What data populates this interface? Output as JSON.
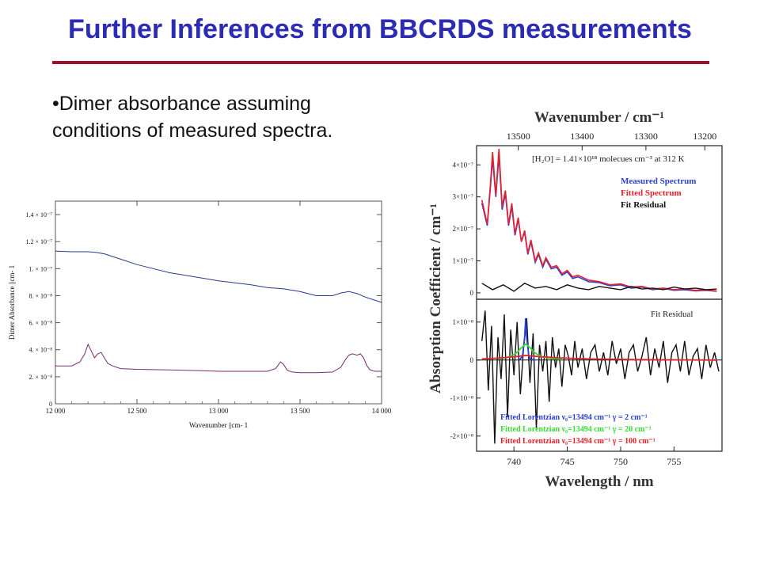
{
  "slide": {
    "title": "Further Inferences from BBCRDS measurements",
    "bullet": "•Dimer absorbance assuming conditions of measured spectra."
  },
  "chart_data": [
    {
      "type": "line",
      "xlabel": "Wavenumber ||cm- 1",
      "ylabel": "Dimer Absorbance ||cm- 1",
      "xlim": [
        12000,
        14000
      ],
      "ylim": [
        0,
        1.5e-07
      ],
      "x_ticks": [
        12000,
        12500,
        13000,
        13500,
        14000
      ],
      "x_tick_labels": [
        "12 000",
        "12 500",
        "13 000",
        "13 500",
        "14 000"
      ],
      "y_ticks": [
        0,
        2e-08,
        4e-08,
        6e-08,
        8e-08,
        1e-07,
        1.2e-07,
        1.4e-07
      ],
      "y_tick_labels": [
        "0",
        "2. × 10⁻⁸",
        "4. × 10⁻⁸",
        "6. × 10⁻⁸",
        "8. × 10⁻⁸",
        "1. × 10⁻⁷",
        "1.2 × 10⁻⁷",
        "1.4 × 10⁻⁷"
      ],
      "series": [
        {
          "color": "#2b3b8f",
          "x": [
            12000,
            12100,
            12200,
            12250,
            12300,
            12350,
            12400,
            12500,
            12600,
            12700,
            12800,
            12900,
            13000,
            13100,
            13200,
            13300,
            13400,
            13500,
            13600,
            13700,
            13750,
            13800,
            13850,
            13900,
            13950,
            14000
          ],
          "y": [
            1.13e-07,
            1.125e-07,
            1.125e-07,
            1.12e-07,
            1.11e-07,
            1.09e-07,
            1.07e-07,
            1.03e-07,
            1e-07,
            9.7e-08,
            9.5e-08,
            9.3e-08,
            9.1e-08,
            8.95e-08,
            8.8e-08,
            8.6e-08,
            8.5e-08,
            8.3e-08,
            8e-08,
            8e-08,
            8.2e-08,
            8.3e-08,
            8.15e-08,
            7.9e-08,
            7.7e-08,
            7.5e-08
          ]
        },
        {
          "color": "#7a2b6f",
          "x": [
            12000,
            12100,
            12150,
            12180,
            12200,
            12220,
            12240,
            12260,
            12280,
            12300,
            12320,
            12350,
            12400,
            12500,
            12700,
            12900,
            13000,
            13200,
            13300,
            13350,
            13380,
            13400,
            13420,
            13450,
            13500,
            13600,
            13700,
            13750,
            13780,
            13800,
            13820,
            13850,
            13870,
            13890,
            13910,
            13930,
            13960,
            14000
          ],
          "y": [
            2.8e-08,
            2.8e-08,
            3.1e-08,
            3.7e-08,
            4.4e-08,
            3.9e-08,
            3.4e-08,
            3.7e-08,
            3.8e-08,
            3.4e-08,
            3e-08,
            2.8e-08,
            2.6e-08,
            2.55e-08,
            2.5e-08,
            2.45e-08,
            2.4e-08,
            2.4e-08,
            2.4e-08,
            2.6e-08,
            3.1e-08,
            2.9e-08,
            2.5e-08,
            2.35e-08,
            2.3e-08,
            2.3e-08,
            2.35e-08,
            2.7e-08,
            3.3e-08,
            3.6e-08,
            3.7e-08,
            3.6e-08,
            3.7e-08,
            3.4e-08,
            2.8e-08,
            2.5e-08,
            2.4e-08,
            2.4e-08
          ]
        }
      ]
    },
    {
      "type": "line",
      "xlabel": "Wavelength / nm",
      "ylabel": "Absorption Coefficient / cm⁻¹",
      "top_axis_label": "Wavenumber / cm⁻¹",
      "top_ticks": [
        "13500",
        "13400",
        "13300",
        "13200"
      ],
      "x_ticks": [
        "740",
        "745",
        "750",
        "755"
      ],
      "xlim": [
        736.5,
        759.5
      ],
      "upper_panel": {
        "annotation": "[H₂O] = 1.41×10¹⁸ molecues cm⁻³ at 312 K",
        "ylim": [
          -2e-08,
          4.6e-07
        ],
        "y_ticks": [
          0,
          1e-07,
          2e-07,
          3e-07,
          4e-07
        ],
        "y_tick_labels": [
          "0",
          "1×10⁻⁷",
          "2×10⁻⁷",
          "3×10⁻⁷",
          "4×10⁻⁷"
        ],
        "legend": [
          {
            "label": "Measured Spectrum",
            "color": "#2a3fd6"
          },
          {
            "label": "Fitted Spectrum",
            "color": "#e8202a"
          },
          {
            "label": "Fit Residual",
            "color": "#111111"
          }
        ],
        "series": [
          {
            "name": "Measured Spectrum",
            "color": "#2a3fd6",
            "x": [
              737,
              737.5,
              737.8,
              738,
              738.3,
              738.6,
              738.9,
              739.2,
              739.5,
              739.8,
              740.1,
              740.4,
              740.7,
              741,
              741.3,
              741.6,
              742,
              742.3,
              742.7,
              743,
              743.5,
              744,
              744.5,
              745,
              745.5,
              746,
              747,
              748,
              749,
              750,
              751,
              752,
              753,
              754,
              755,
              756,
              757,
              758,
              759
            ],
            "y": [
              2.8e-07,
              2.1e-07,
              3.3e-07,
              4.2e-07,
              3e-07,
              4.3e-07,
              2.6e-07,
              3.1e-07,
              2.1e-07,
              2.7e-07,
              1.8e-07,
              2.3e-07,
              1.6e-07,
              1.9e-07,
              1.2e-07,
              1.6e-07,
              9.5e-08,
              1.2e-07,
              8e-08,
              1.05e-07,
              7.5e-08,
              8e-08,
              5.5e-08,
              6.5e-08,
              4.5e-08,
              5e-08,
              3.5e-08,
              3.2e-08,
              2.2e-08,
              2.5e-08,
              1.5e-08,
              1.8e-08,
              1e-08,
              1.4e-08,
              8e-09,
              1e-08,
              6e-09,
              8e-09,
              5e-09
            ]
          },
          {
            "name": "Fitted Spectrum",
            "color": "#e8202a",
            "x": [
              737,
              737.5,
              737.8,
              738,
              738.3,
              738.6,
              738.9,
              739.2,
              739.5,
              739.8,
              740.1,
              740.4,
              740.7,
              741,
              741.3,
              741.6,
              742,
              742.3,
              742.7,
              743,
              743.5,
              744,
              744.5,
              745,
              745.5,
              746,
              747,
              748,
              749,
              750,
              751,
              752,
              753,
              754,
              755,
              756,
              757,
              758,
              759
            ],
            "y": [
              2.9e-07,
              2.15e-07,
              3.4e-07,
              4.4e-07,
              3.05e-07,
              4.5e-07,
              2.7e-07,
              3.2e-07,
              2.15e-07,
              2.8e-07,
              1.85e-07,
              2.35e-07,
              1.6e-07,
              1.95e-07,
              1.25e-07,
              1.65e-07,
              1e-07,
              1.25e-07,
              8.5e-08,
              1.1e-07,
              8e-08,
              8.5e-08,
              6e-08,
              7e-08,
              5e-08,
              5.5e-08,
              4e-08,
              3.5e-08,
              2.5e-08,
              2.8e-08,
              1.8e-08,
              2e-08,
              1.2e-08,
              1.5e-08,
              1e-08,
              1.2e-08,
              8e-09,
              9e-09,
              6e-09
            ]
          },
          {
            "name": "Fit Residual",
            "color": "#111111",
            "x": [
              737,
              738,
              739,
              740,
              741,
              742,
              743,
              744,
              745,
              746,
              747,
              748,
              749,
              750,
              751,
              752,
              753,
              754,
              755,
              756,
              757,
              758,
              759
            ],
            "y": [
              3e-08,
              1e-08,
              2.5e-08,
              5e-09,
              3e-08,
              1.5e-08,
              2e-08,
              1e-08,
              2.5e-08,
              1.5e-08,
              1e-08,
              2e-08,
              1.5e-08,
              1e-08,
              2e-08,
              1.2e-08,
              1.5e-08,
              1e-08,
              1.8e-08,
              1.2e-08,
              1.5e-08,
              1e-08,
              1.2e-08
            ]
          }
        ]
      },
      "lower_panel": {
        "annotation": "Fit Residual",
        "ylim": [
          -2.4e-08,
          1.6e-08
        ],
        "y_ticks": [
          -2e-08,
          -1e-08,
          0,
          1e-08
        ],
        "y_tick_labels": [
          "-2×10⁻⁸",
          "-1×10⁻⁸",
          "0",
          "1×10⁻⁸"
        ],
        "legend": [
          {
            "label": "Fitted Lorentzian ν₀=13494 cm⁻¹ γ = 2 cm⁻¹",
            "color": "#2a3fd6"
          },
          {
            "label": "Fitted Lorentzian ν₀=13494 cm⁻¹ γ = 20 cm⁻¹",
            "color": "#33dd33"
          },
          {
            "label": "Fitted Lorentzian ν₀=13494 cm⁻¹ γ = 100 cm⁻¹",
            "color": "#e8202a"
          }
        ],
        "series": [
          {
            "name": "Fit Residual",
            "color": "#111111",
            "x": [
              737,
              737.3,
              737.6,
              737.9,
              738.2,
              738.5,
              738.8,
              739.1,
              739.4,
              739.7,
              740,
              740.3,
              740.6,
              740.9,
              741.2,
              741.5,
              741.8,
              742.1,
              742.4,
              742.7,
              743,
              743.3,
              743.6,
              743.9,
              744.2,
              744.5,
              744.8,
              745.1,
              745.4,
              745.7,
              746,
              746.4,
              746.8,
              747.2,
              747.6,
              748,
              748.4,
              748.8,
              749.2,
              749.6,
              750,
              750.4,
              750.8,
              751.2,
              751.6,
              752,
              752.4,
              752.8,
              753.2,
              753.6,
              754,
              754.4,
              754.8,
              755.2,
              755.6,
              756,
              756.4,
              756.8,
              757.2,
              757.6,
              758,
              758.4,
              758.8,
              759.2
            ],
            "y": [
              5e-09,
              1.3e-08,
              -8e-09,
              9e-09,
              -2.2e-08,
              6e-09,
              -5e-09,
              1.2e-08,
              -1.5e-08,
              8e-09,
              -4e-09,
              1e-08,
              -9e-09,
              3e-09,
              1.1e-08,
              -6e-09,
              7e-09,
              -1.8e-08,
              4e-09,
              -3e-09,
              5e-09,
              -1.1e-08,
              6e-09,
              -2e-09,
              3e-09,
              -7e-09,
              4e-09,
              1e-09,
              -4e-09,
              5e-09,
              -2e-09,
              3e-09,
              -5e-09,
              2e-09,
              4e-09,
              -3e-09,
              2e-09,
              -4e-09,
              5e-09,
              -1e-09,
              3e-09,
              -5e-09,
              2e-09,
              4e-09,
              -3e-09,
              1e-09,
              6e-09,
              -4e-09,
              3e-09,
              -2e-09,
              5e-09,
              -6e-09,
              2e-09,
              4e-09,
              -3e-09,
              5e-09,
              -4e-09,
              1e-09,
              3e-09,
              -5e-09,
              4e-09,
              -2e-09,
              2e-09,
              -3e-09
            ]
          },
          {
            "name": "Fitted Lorentzian ν₀=13494 cm⁻¹ γ = 2 cm⁻¹",
            "color": "#2a3fd6",
            "x": [
              740.5,
              740.8,
              741,
              741.1,
              741.2,
              741.4,
              741.6,
              742
            ],
            "y": [
              0,
              1e-09,
              6e-09,
              1.1e-08,
              6e-09,
              1e-09,
              2e-10,
              0
            ]
          },
          {
            "name": "Fitted Lorentzian ν₀=13494 cm⁻¹ γ = 20 cm⁻¹",
            "color": "#33dd33",
            "x": [
              738.5,
              739.5,
              740.2,
              740.7,
              741.1,
              741.5,
              742,
              742.7,
              743.5,
              744.5
            ],
            "y": [
              3e-10,
              8e-10,
              1.8e-09,
              3.2e-09,
              4.2e-09,
              3.3e-09,
              1.8e-09,
              8e-10,
              4e-10,
              2e-10
            ]
          },
          {
            "name": "Fitted Lorentzian ν₀=13494 cm⁻¹ γ = 100 cm⁻¹",
            "color": "#e8202a",
            "x": [
              737,
              739,
              740.5,
              741.1,
              742,
              744,
              747,
              752,
              759
            ],
            "y": [
              3e-10,
              6e-10,
              1e-09,
              1.2e-09,
              1e-09,
              6e-10,
              3e-10,
              1e-10,
              0
            ]
          }
        ]
      }
    }
  ]
}
